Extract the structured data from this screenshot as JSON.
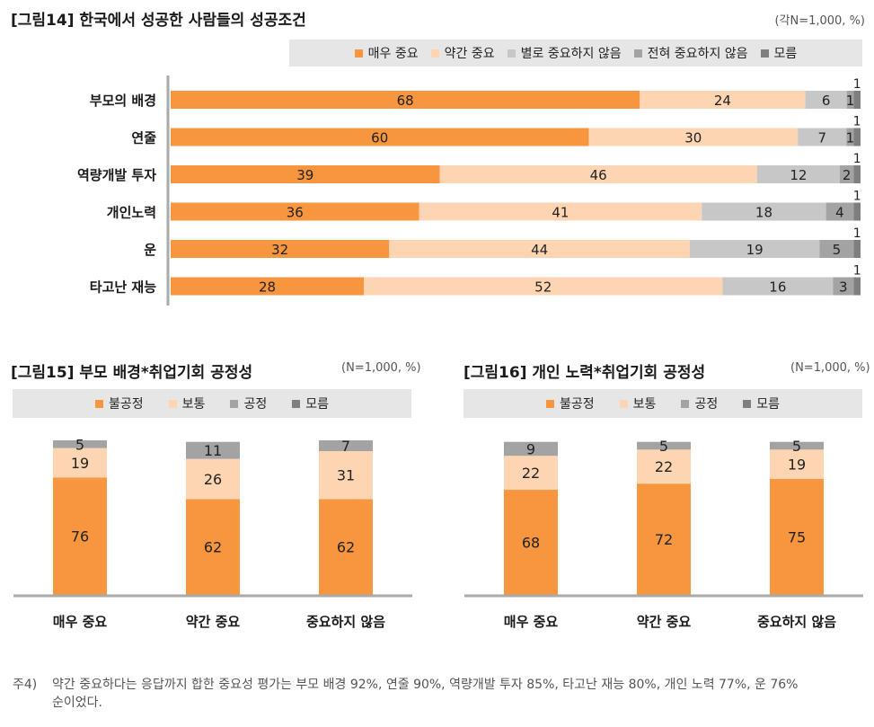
{
  "colors": {
    "very_important": "#f7963f",
    "somewhat_important": "#fdd5b2",
    "not_very_important": "#c7c7c7",
    "not_at_all_important": "#a3a3a3",
    "dont_know": "#7f7f7f",
    "unfair": "#f7963f",
    "normal": "#fdd5b2",
    "fair": "#a3a3a3",
    "dk": "#7f7f7f"
  },
  "fig14": {
    "title": "[그림14] 한국에서 성공한 사람들의 성공조건",
    "note": "(각N=1,000, %)",
    "legend": [
      {
        "label": "매우 중요",
        "color": "#f7963f"
      },
      {
        "label": "약간 중요",
        "color": "#fdd5b2"
      },
      {
        "label": "별로 중요하지 않음",
        "color": "#c7c7c7"
      },
      {
        "label": "전혀 중요하지 않음",
        "color": "#a3a3a3"
      },
      {
        "label": "모름",
        "color": "#7f7f7f"
      }
    ],
    "chart_data": {
      "type": "bar",
      "orientation": "horizontal",
      "stacked": true,
      "title": "[그림14] 한국에서 성공한 사람들의 성공조건",
      "categories": [
        "부모의 배경",
        "연줄",
        "역량개발 투자",
        "개인노력",
        "운",
        "타고난 재능"
      ],
      "series": [
        {
          "name": "매우 중요",
          "values": [
            68,
            60,
            39,
            36,
            32,
            28
          ]
        },
        {
          "name": "약간 중요",
          "values": [
            24,
            30,
            46,
            41,
            44,
            52
          ]
        },
        {
          "name": "별로 중요하지 않음",
          "values": [
            6,
            7,
            12,
            18,
            19,
            16
          ]
        },
        {
          "name": "전혀 중요하지 않음",
          "values": [
            1,
            1,
            2,
            4,
            5,
            3
          ]
        },
        {
          "name": "모름",
          "values": [
            1,
            1,
            1,
            1,
            1,
            1
          ]
        }
      ],
      "xlim": [
        0,
        100
      ]
    }
  },
  "fig15": {
    "title": "[그림15] 부모 배경*취업기회 공정성",
    "note": "(N=1,000, %)",
    "legend": [
      {
        "label": "불공정",
        "color": "#f7963f"
      },
      {
        "label": "보통",
        "color": "#fdd5b2"
      },
      {
        "label": "공정",
        "color": "#a3a3a3"
      },
      {
        "label": "모름",
        "color": "#7f7f7f"
      }
    ],
    "chart_data": {
      "type": "bar",
      "orientation": "vertical",
      "stacked": true,
      "title": "[그림15] 부모 배경*취업기회 공정성",
      "categories": [
        "매우 중요",
        "약간 중요",
        "중요하지 않음"
      ],
      "series": [
        {
          "name": "불공정",
          "values": [
            76,
            62,
            62
          ]
        },
        {
          "name": "보통",
          "values": [
            19,
            26,
            31
          ]
        },
        {
          "name": "공정",
          "values": [
            5,
            11,
            7
          ]
        }
      ],
      "ylim": [
        0,
        100
      ]
    }
  },
  "fig16": {
    "title": "[그림16] 개인 노력*취업기회 공정성",
    "note": "(N=1,000, %)",
    "legend": [
      {
        "label": "불공정",
        "color": "#f7963f"
      },
      {
        "label": "보통",
        "color": "#fdd5b2"
      },
      {
        "label": "공정",
        "color": "#a3a3a3"
      },
      {
        "label": "모름",
        "color": "#7f7f7f"
      }
    ],
    "chart_data": {
      "type": "bar",
      "orientation": "vertical",
      "stacked": true,
      "title": "[그림16] 개인 노력*취업기회 공정성",
      "categories": [
        "매우 중요",
        "약간 중요",
        "중요하지 않음"
      ],
      "series": [
        {
          "name": "불공정",
          "values": [
            68,
            72,
            75
          ]
        },
        {
          "name": "보통",
          "values": [
            22,
            22,
            19
          ]
        },
        {
          "name": "공정",
          "values": [
            9,
            5,
            5
          ]
        }
      ],
      "ylim": [
        0,
        100
      ]
    }
  },
  "footnote": {
    "label": "주4)",
    "line1": "약간 중요하다는 응답까지 합한 중요성 평가는 부모 배경 92%, 연줄 90%, 역량개발 투자 85%, 타고난 재능 80%, 개인 노력 77%, 운 76%",
    "line2": "순이었다."
  }
}
